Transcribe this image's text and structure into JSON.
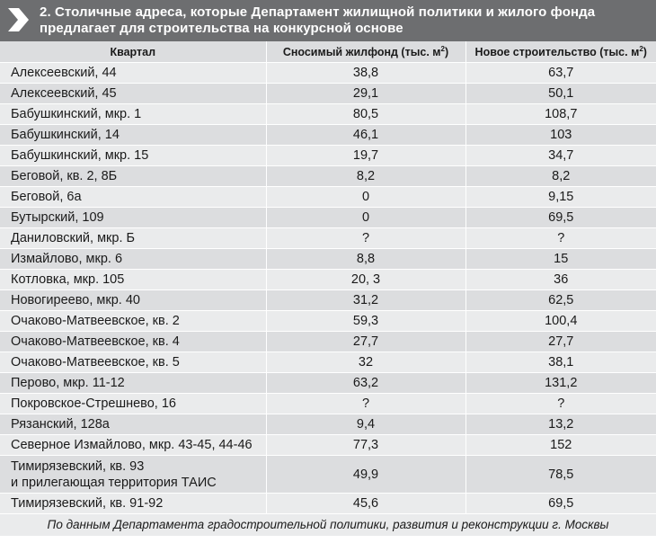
{
  "header": {
    "title": "2. Столичные адреса, которые Департамент жилищной политики и жилого фонда предлагает для строительства на конкурсной основе",
    "icon": "chevron-right-icon",
    "background": "#6d6e70"
  },
  "table": {
    "columns": {
      "quarter": "Квартал",
      "demolished": "Сносимый жилфонд (тыс. м",
      "new_build": "Новое строительство (тыс. м",
      "unit_sup": "2",
      "unit_close": ")"
    },
    "rows": [
      {
        "name": "Алексеевский, 44",
        "demolished": "38,8",
        "new_build": "63,7"
      },
      {
        "name": "Алексеевский, 45",
        "demolished": "29,1",
        "new_build": "50,1"
      },
      {
        "name": "Бабушкинский, мкр. 1",
        "demolished": "80,5",
        "new_build": "108,7"
      },
      {
        "name": "Бабушкинский, 14",
        "demolished": "46,1",
        "new_build": "103"
      },
      {
        "name": "Бабушкинский, мкр. 15",
        "demolished": "19,7",
        "new_build": "34,7"
      },
      {
        "name": "Беговой, кв. 2, 8Б",
        "demolished": "8,2",
        "new_build": "8,2"
      },
      {
        "name": "Беговой, 6а",
        "demolished": "0",
        "new_build": "9,15"
      },
      {
        "name": "Бутырский, 109",
        "demolished": "0",
        "new_build": "69,5"
      },
      {
        "name": "Даниловский, мкр. Б",
        "demolished": "?",
        "new_build": "?"
      },
      {
        "name": "Измайлово, мкр. 6",
        "demolished": "8,8",
        "new_build": "15"
      },
      {
        "name": "Котловка, мкр. 105",
        "demolished": "20, 3",
        "new_build": "36"
      },
      {
        "name": "Новогиреево, мкр. 40",
        "demolished": "31,2",
        "new_build": "62,5"
      },
      {
        "name": "Очаково-Матвеевское, кв. 2",
        "demolished": "59,3",
        "new_build": "100,4"
      },
      {
        "name": "Очаково-Матвеевское, кв. 4",
        "demolished": "27,7",
        "new_build": "27,7"
      },
      {
        "name": "Очаково-Матвеевское, кв. 5",
        "demolished": "32",
        "new_build": "38,1"
      },
      {
        "name": "Перово, мкр. 11-12",
        "demolished": "63,2",
        "new_build": "131,2"
      },
      {
        "name": "Покровское-Стрешнево, 16",
        "demolished": "?",
        "new_build": "?"
      },
      {
        "name": "Рязанский, 128а",
        "demolished": "9,4",
        "new_build": "13,2"
      },
      {
        "name": "Северное Измайлово, мкр. 43-45, 44-46",
        "demolished": "77,3",
        "new_build": "152"
      }
    ],
    "tall_row": {
      "name_line1": "Тимирязевский, кв. 93",
      "name_line2": "и прилегающая территория ТАИС",
      "demolished": "49,9",
      "new_build": "78,5"
    },
    "last_row": {
      "name": "Тимирязевский, кв. 91-92",
      "demolished": "45,6",
      "new_build": "69,5"
    }
  },
  "footnote": "По данным Департамента градостроительной политики, развития и реконструкции г. Москвы"
}
